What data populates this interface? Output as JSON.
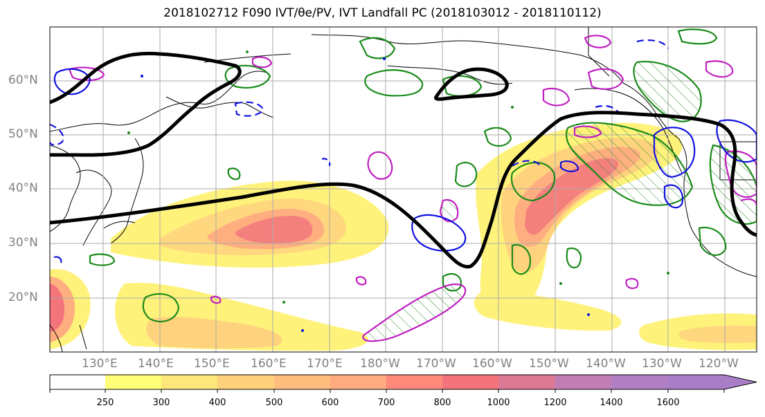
{
  "title": "2018102712 F090 IVT/θe/PV, IVT Landfall PC (2018103012 - 2018110112)",
  "map": {
    "lat_labels": [
      "60°N",
      "50°N",
      "40°N",
      "30°N",
      "20°N"
    ],
    "lon_labels": [
      "130°E",
      "140°E",
      "150°E",
      "160°E",
      "170°E",
      "180°W",
      "170°W",
      "160°W",
      "150°W",
      "140°W",
      "130°W",
      "120°W"
    ]
  },
  "colorbar": {
    "ticks": [
      "250",
      "300",
      "400",
      "500",
      "600",
      "700",
      "800",
      "1000",
      "1200",
      "1400",
      "1600"
    ],
    "colors": [
      "#ffffff",
      "#fffe78",
      "#fde67a",
      "#fed27c",
      "#ffbe7e",
      "#ffaa80",
      "#ff8a7c",
      "#f4747c",
      "#dc7a96",
      "#c07eb4",
      "#a97ec6"
    ]
  }
}
